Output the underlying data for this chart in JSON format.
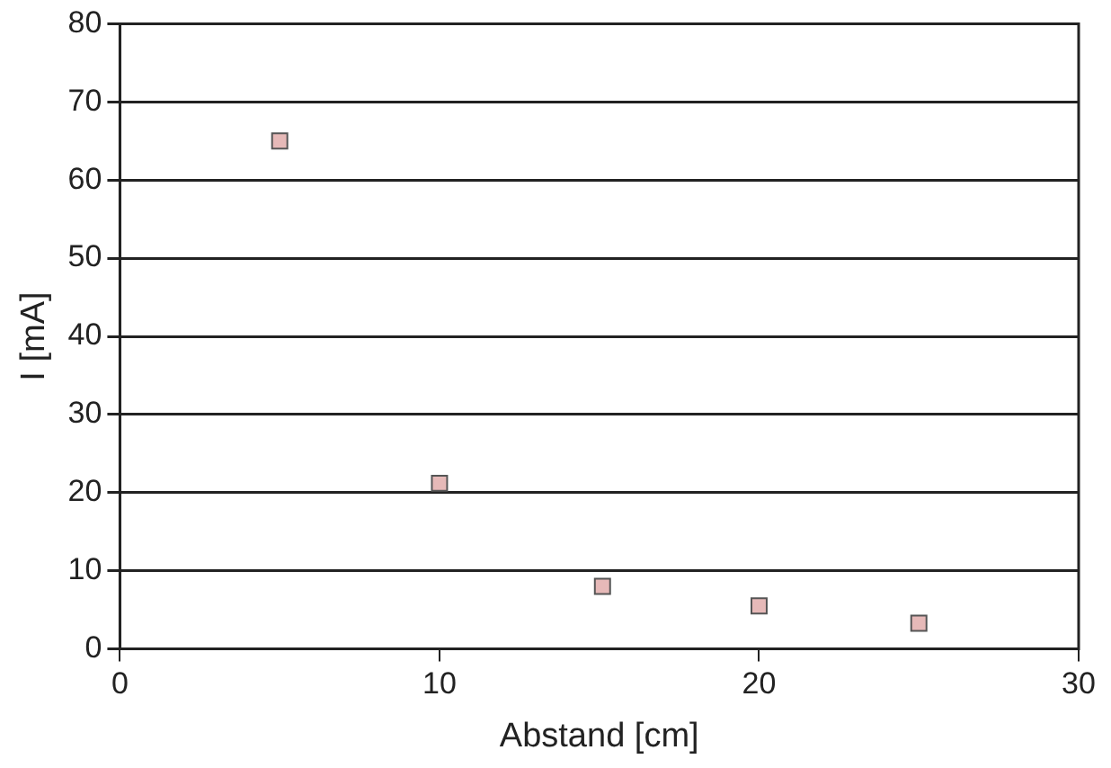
{
  "chart_data": {
    "type": "scatter",
    "xlabel": "Abstand [cm]",
    "ylabel": "I [mA]",
    "x": [
      5,
      10,
      15.1,
      20,
      25
    ],
    "values": [
      65,
      21.2,
      8,
      5.5,
      3.3
    ],
    "color": "#e6b9b8",
    "xlim": [
      0,
      30
    ],
    "xticks": [
      0,
      10,
      20,
      30
    ],
    "ylim": [
      0,
      80
    ],
    "yticks": [
      0,
      10,
      20,
      30,
      40,
      50,
      60,
      70,
      80
    ],
    "grid": "y",
    "marker": "square",
    "legend": false
  }
}
